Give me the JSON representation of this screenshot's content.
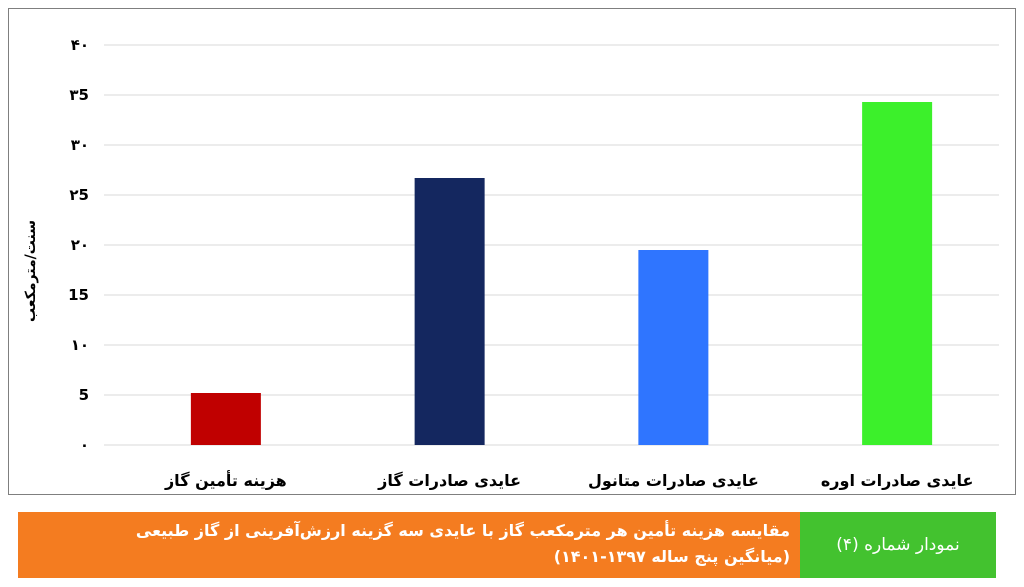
{
  "chart_data": {
    "type": "bar",
    "title": "",
    "xlabel": "",
    "ylabel": "سنت/مترمکعب",
    "ylim": [
      0,
      40
    ],
    "yticks": [
      0,
      5,
      10,
      15,
      20,
      25,
      30,
      35,
      40
    ],
    "ytick_labels": [
      "۰",
      "5",
      "۱۰",
      "15",
      "۲۰",
      "۲5",
      "۳۰",
      "۳5",
      "۴۰"
    ],
    "categories": [
      "هزینه تأمین گاز",
      "عایدی صادرات گاز",
      "عایدی صادرات متانول",
      "عایدی صادرات اوره"
    ],
    "values": [
      5.2,
      26.7,
      19.5,
      34.3
    ],
    "colors": [
      "#c00000",
      "#14275f",
      "#2f75ff",
      "#3cf02b"
    ],
    "grid": true,
    "legend": "none"
  },
  "caption": {
    "label": "نمودار شماره (۴)",
    "line1": "مقایسه هزینه تأمین هر مترمکعب گاز با عایدی سه گزینه ارزش‌آفرینی از گاز طبیعی",
    "line2": "(میانگین پنج ساله ۱۳۹۷-۱۴۰۱)",
    "label_color": "#43c22f",
    "bar_color": "#f47c20"
  }
}
